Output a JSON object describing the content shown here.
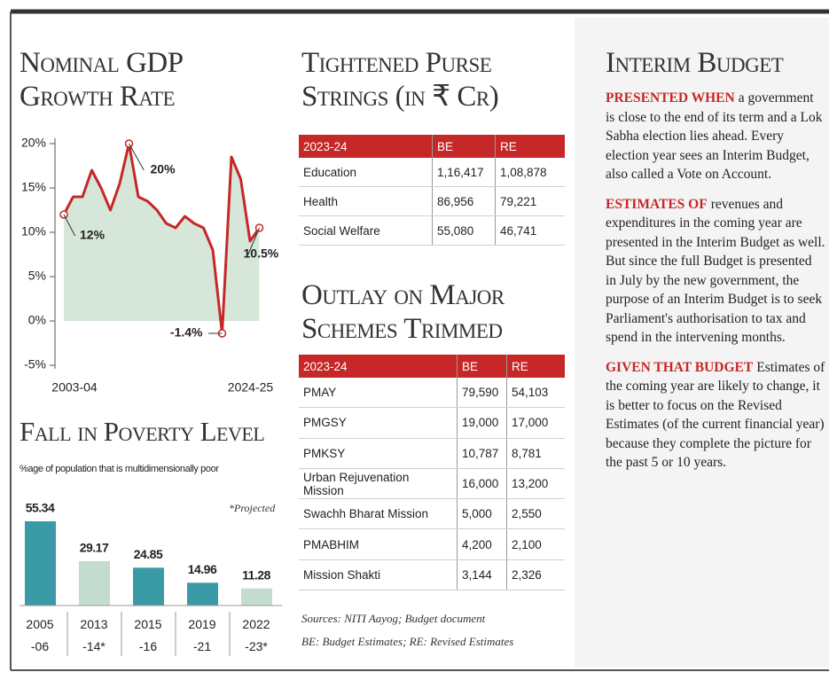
{
  "chart_data": [
    {
      "type": "line",
      "title": "Nominal GDP Growth Rate",
      "categories": [
        "2003-04",
        null,
        null,
        null,
        null,
        null,
        null,
        null,
        null,
        null,
        null,
        null,
        null,
        null,
        null,
        null,
        null,
        null,
        null,
        null,
        null,
        "2024-25"
      ],
      "values": [
        12,
        14,
        14,
        17,
        15,
        12.5,
        15.5,
        20,
        14,
        13.5,
        12.5,
        11,
        10.5,
        11.8,
        11,
        10.5,
        8,
        -1.4,
        18.5,
        16,
        9,
        10.5
      ],
      "value_labels": [
        "12%",
        null,
        null,
        null,
        null,
        null,
        null,
        "20%",
        null,
        null,
        null,
        null,
        null,
        null,
        null,
        null,
        null,
        "-1.4%",
        null,
        null,
        null,
        "10.5%"
      ],
      "color": "#c62828",
      "fill": "#d6e7da",
      "ylim": [
        -5,
        20
      ],
      "yticks": [
        {
          "value": -5,
          "label": "-5%"
        },
        {
          "value": 0,
          "label": "0%"
        },
        {
          "value": 5,
          "label": "5%"
        },
        {
          "value": 10,
          "label": "10%"
        },
        {
          "value": 15,
          "label": "15%"
        },
        {
          "value": 20,
          "label": "20%"
        }
      ],
      "grid": false
    },
    {
      "type": "bar",
      "title": "Fall in Poverty Level",
      "subtitle": "%age of population that is multidimensionally poor",
      "note": "*Projected",
      "categories": [
        "2005\n-06",
        "2013\n-14*",
        "2015\n-16",
        "2019\n-21",
        "2022\n-23*"
      ],
      "values": [
        55.34,
        29.17,
        24.85,
        14.96,
        11.28
      ],
      "colors": [
        "#3a9ba7",
        "#c3dccf",
        "#3a9ba7",
        "#3a9ba7",
        "#c3dccf"
      ]
    }
  ],
  "tables": [
    {
      "title": "Tightened Purse Strings (in ₹ Cr)",
      "header": [
        "2023-24",
        "BE",
        "RE"
      ],
      "rows": [
        [
          "Education",
          "1,16,417",
          "1,08,878"
        ],
        [
          "Health",
          "86,956",
          "79,221"
        ],
        [
          "Social Welfare",
          "55,080",
          "46,741"
        ]
      ]
    },
    {
      "title": "Outlay on Major Schemes Trimmed",
      "header": [
        "2023-24",
        "BE",
        "RE"
      ],
      "rows": [
        [
          "PMAY",
          "79,590",
          "54,103"
        ],
        [
          "PMGSY",
          "19,000",
          "17,000"
        ],
        [
          "PMKSY",
          "10,787",
          "8,781"
        ],
        [
          "Urban Rejuvenation Mission",
          "16,000",
          "13,200"
        ],
        [
          "Swachh Bharat Mission",
          "5,000",
          "2,550"
        ],
        [
          "PMABHIM",
          "4,200",
          "2,100"
        ],
        [
          "Mission Shakti",
          "3,144",
          "2,326"
        ]
      ]
    }
  ],
  "sources": [
    "Sources: NITI Aayog; Budget document",
    "BE: Budget Estimates; RE: Revised Estimates"
  ],
  "sidebar": {
    "title": "Interim Budget",
    "paragraphs": [
      {
        "lead": "PRESENTED WHEN",
        "text": "a government is close to the end of its term and a Lok Sabha election lies ahead. Every election year sees an Interim Budget, also called a Vote on Account."
      },
      {
        "lead": "ESTIMATES OF",
        "text": "revenues and expenditures in the coming year are presented in the Interim Budget as well. But since the full Budget is presented in July by the new government, the purpose of an Interim Budget is to seek Parliament's authorisation to tax and spend in the intervening months."
      },
      {
        "lead": "GIVEN THAT BUDGET",
        "text": "Estimates of the coming year are likely to change, it is better to focus on the Revised Estimates (of the current financial year) because they complete the picture for the past 5 or 10 years."
      }
    ]
  }
}
